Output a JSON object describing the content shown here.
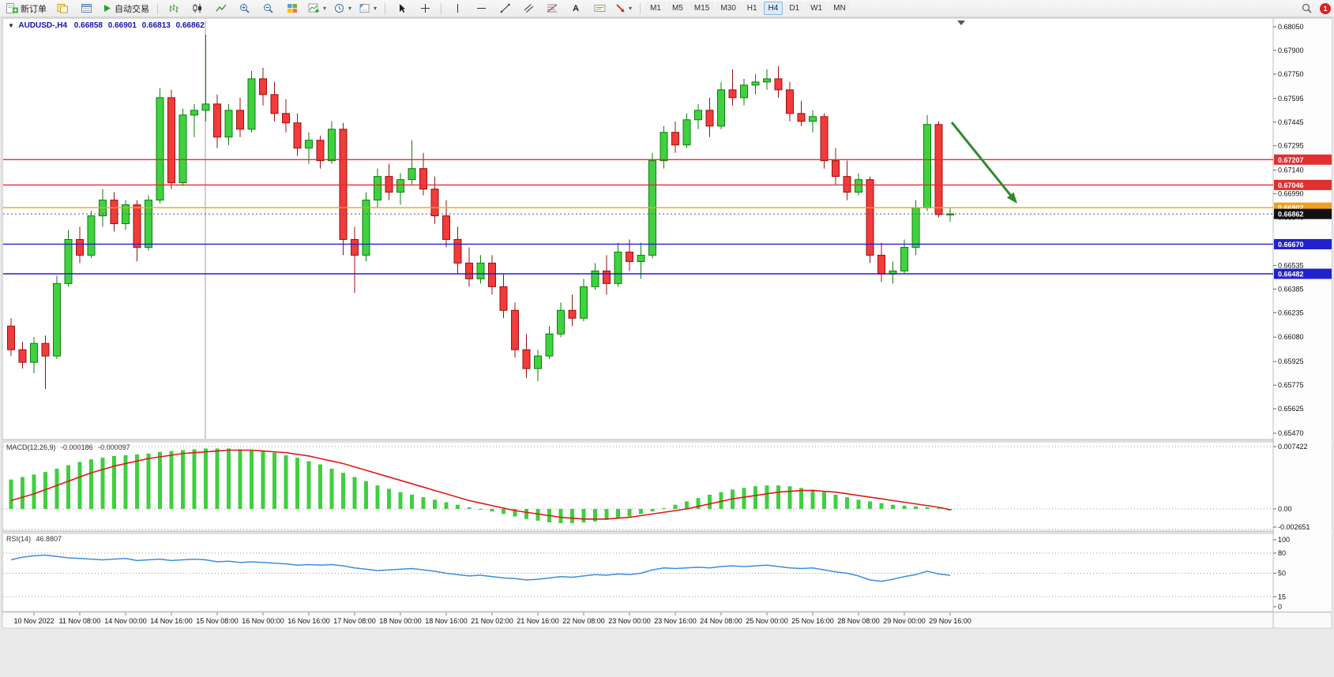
{
  "toolbar": {
    "new_order_label": "新订单",
    "auto_trading_label": "自动交易",
    "timeframes": [
      "M1",
      "M5",
      "M15",
      "M30",
      "H1",
      "H4",
      "D1",
      "W1",
      "MN"
    ],
    "active_timeframe": "H4",
    "notification_count": "1"
  },
  "chart_header": {
    "symbol_period": "AUDUSD-,H4",
    "open": "0.66858",
    "high": "0.66901",
    "low": "0.66813",
    "close": "0.66862"
  },
  "chart_data": {
    "type": "candlestick",
    "symbol": "AUDUSD",
    "period": "H4",
    "price_axis_labels": [
      "0.68050",
      "0.67900",
      "0.67750",
      "0.67595",
      "0.67445",
      "0.67295",
      "0.67140",
      "0.66990",
      "0.66840",
      "0.66685",
      "0.66535",
      "0.66385",
      "0.66235",
      "0.66080",
      "0.65925",
      "0.65775",
      "0.65625",
      "0.65470"
    ],
    "time_labels": [
      "10 Nov 2022",
      "11 Nov 08:00",
      "14 Nov 00:00",
      "14 Nov 16:00",
      "15 Nov 08:00",
      "16 Nov 00:00",
      "16 Nov 16:00",
      "17 Nov 08:00",
      "18 Nov 00:00",
      "18 Nov 16:00",
      "21 Nov 02:00",
      "21 Nov 16:00",
      "22 Nov 08:00",
      "23 Nov 00:00",
      "23 Nov 16:00",
      "24 Nov 08:00",
      "25 Nov 00:00",
      "25 Nov 16:00",
      "28 Nov 08:00",
      "29 Nov 00:00",
      "29 Nov 16:00"
    ],
    "label_start_index": 2,
    "label_step": 4,
    "colors": {
      "up": "#3fd23f",
      "up_border": "#0f7d0f",
      "down": "#f23b3b",
      "down_border": "#991111",
      "background": "#ffffff"
    },
    "candles": [
      [
        0.6615,
        0.662,
        0.6596,
        0.66
      ],
      [
        0.66,
        0.6605,
        0.6588,
        0.6592
      ],
      [
        0.6592,
        0.6608,
        0.6585,
        0.6604
      ],
      [
        0.6604,
        0.6609,
        0.6575,
        0.6596
      ],
      [
        0.6596,
        0.6647,
        0.6594,
        0.6642
      ],
      [
        0.6642,
        0.6676,
        0.664,
        0.667
      ],
      [
        0.667,
        0.6678,
        0.6655,
        0.666
      ],
      [
        0.666,
        0.6688,
        0.6658,
        0.6685
      ],
      [
        0.6685,
        0.6702,
        0.6678,
        0.6695
      ],
      [
        0.6695,
        0.67,
        0.6675,
        0.668
      ],
      [
        0.668,
        0.6695,
        0.6676,
        0.6692
      ],
      [
        0.6692,
        0.6695,
        0.6656,
        0.6665
      ],
      [
        0.6665,
        0.6698,
        0.6663,
        0.6695
      ],
      [
        0.6695,
        0.6766,
        0.6693,
        0.676
      ],
      [
        0.676,
        0.6765,
        0.6702,
        0.6706
      ],
      [
        0.6706,
        0.6753,
        0.6704,
        0.6749
      ],
      [
        0.6749,
        0.6756,
        0.6735,
        0.6752
      ],
      [
        0.6752,
        0.68,
        0.6745,
        0.6756
      ],
      [
        0.6756,
        0.6762,
        0.6728,
        0.6735
      ],
      [
        0.6735,
        0.6756,
        0.673,
        0.6752
      ],
      [
        0.6752,
        0.676,
        0.6735,
        0.674
      ],
      [
        0.674,
        0.6777,
        0.6738,
        0.6772
      ],
      [
        0.6772,
        0.6779,
        0.6755,
        0.6762
      ],
      [
        0.6762,
        0.677,
        0.6745,
        0.675
      ],
      [
        0.675,
        0.6759,
        0.6738,
        0.6744
      ],
      [
        0.6744,
        0.675,
        0.6723,
        0.6728
      ],
      [
        0.6728,
        0.6738,
        0.6718,
        0.6733
      ],
      [
        0.6733,
        0.6736,
        0.6715,
        0.672
      ],
      [
        0.672,
        0.6745,
        0.6718,
        0.674
      ],
      [
        0.674,
        0.6744,
        0.666,
        0.667
      ],
      [
        0.667,
        0.6678,
        0.6636,
        0.666
      ],
      [
        0.666,
        0.67,
        0.6656,
        0.6695
      ],
      [
        0.6695,
        0.6715,
        0.669,
        0.671
      ],
      [
        0.671,
        0.6718,
        0.6695,
        0.67
      ],
      [
        0.67,
        0.6712,
        0.6692,
        0.6708
      ],
      [
        0.6708,
        0.6733,
        0.6705,
        0.6715
      ],
      [
        0.6715,
        0.6725,
        0.6698,
        0.6702
      ],
      [
        0.6702,
        0.671,
        0.668,
        0.6685
      ],
      [
        0.6685,
        0.6695,
        0.6665,
        0.667
      ],
      [
        0.667,
        0.6678,
        0.6648,
        0.6655
      ],
      [
        0.6655,
        0.6665,
        0.664,
        0.6645
      ],
      [
        0.6645,
        0.666,
        0.6642,
        0.6655
      ],
      [
        0.6655,
        0.666,
        0.6635,
        0.664
      ],
      [
        0.664,
        0.6648,
        0.662,
        0.6625
      ],
      [
        0.6625,
        0.663,
        0.6595,
        0.66
      ],
      [
        0.66,
        0.661,
        0.6582,
        0.6588
      ],
      [
        0.6588,
        0.66,
        0.658,
        0.6596
      ],
      [
        0.6596,
        0.6615,
        0.6594,
        0.661
      ],
      [
        0.661,
        0.663,
        0.6608,
        0.6625
      ],
      [
        0.6625,
        0.6635,
        0.6615,
        0.662
      ],
      [
        0.662,
        0.6645,
        0.6618,
        0.664
      ],
      [
        0.664,
        0.6655,
        0.6638,
        0.665
      ],
      [
        0.665,
        0.666,
        0.6635,
        0.6642
      ],
      [
        0.6642,
        0.6668,
        0.664,
        0.6662
      ],
      [
        0.6662,
        0.667,
        0.665,
        0.6656
      ],
      [
        0.6656,
        0.6668,
        0.6645,
        0.666
      ],
      [
        0.666,
        0.6725,
        0.6658,
        0.672
      ],
      [
        0.672,
        0.6742,
        0.6715,
        0.6738
      ],
      [
        0.6738,
        0.6745,
        0.6725,
        0.673
      ],
      [
        0.673,
        0.675,
        0.6728,
        0.6746
      ],
      [
        0.6746,
        0.6756,
        0.674,
        0.6752
      ],
      [
        0.6752,
        0.676,
        0.6735,
        0.6742
      ],
      [
        0.6742,
        0.677,
        0.674,
        0.6765
      ],
      [
        0.6765,
        0.6778,
        0.6755,
        0.676
      ],
      [
        0.676,
        0.6772,
        0.6755,
        0.6768
      ],
      [
        0.6768,
        0.6775,
        0.6762,
        0.677
      ],
      [
        0.677,
        0.6778,
        0.6765,
        0.6772
      ],
      [
        0.6772,
        0.678,
        0.676,
        0.6765
      ],
      [
        0.6765,
        0.677,
        0.6745,
        0.675
      ],
      [
        0.675,
        0.6758,
        0.6742,
        0.6745
      ],
      [
        0.6745,
        0.6752,
        0.6738,
        0.6748
      ],
      [
        0.6748,
        0.675,
        0.6715,
        0.672
      ],
      [
        0.672,
        0.6728,
        0.6705,
        0.671
      ],
      [
        0.671,
        0.672,
        0.6695,
        0.67
      ],
      [
        0.67,
        0.6712,
        0.6698,
        0.6708
      ],
      [
        0.6708,
        0.671,
        0.6655,
        0.666
      ],
      [
        0.666,
        0.6668,
        0.6643,
        0.6648
      ],
      [
        0.6648,
        0.6656,
        0.6642,
        0.665
      ],
      [
        0.665,
        0.667,
        0.6648,
        0.6665
      ],
      [
        0.6665,
        0.6695,
        0.666,
        0.669
      ],
      [
        0.669,
        0.6749,
        0.6688,
        0.6743
      ],
      [
        0.6743,
        0.6745,
        0.6684,
        0.66858
      ],
      [
        0.66858,
        0.66901,
        0.66813,
        0.66862
      ]
    ],
    "hlines": [
      {
        "price": 0.67207,
        "label": "0.67207",
        "color": "#e03030",
        "type": "resistance"
      },
      {
        "price": 0.67046,
        "label": "0.67046",
        "color": "#e03030",
        "type": "resistance"
      },
      {
        "price": 0.66902,
        "label": "0.66902",
        "color": "#f0a020",
        "type": "pivot"
      },
      {
        "price": 0.6667,
        "label": "0.66670",
        "color": "#2222cc",
        "type": "support"
      },
      {
        "price": 0.66482,
        "label": "0.66482",
        "color": "#2222cc",
        "type": "support"
      }
    ],
    "current_price": {
      "value": 0.66862,
      "label": "0.66862",
      "badge_color": "#111111"
    },
    "arrow_annotation": {
      "color": "#2e8b2e",
      "direction": "down-right"
    },
    "macd": {
      "label": "MACD(12,26,9)",
      "value_main": "-0.000186",
      "value_signal": "-0.000097",
      "axis_labels": [
        "0.007422",
        "0.00",
        "-0.002651"
      ],
      "axis_max": 0.007422,
      "axis_min": -0.002651,
      "histogram_color": "#3fcf3f",
      "signal_color": "#e01818",
      "histogram": [
        0.0035,
        0.0038,
        0.0041,
        0.0044,
        0.0048,
        0.0052,
        0.0056,
        0.0059,
        0.0061,
        0.0063,
        0.0064,
        0.0065,
        0.0066,
        0.0068,
        0.0069,
        0.007,
        0.0071,
        0.0072,
        0.0072,
        0.0072,
        0.0071,
        0.007,
        0.0069,
        0.0067,
        0.0064,
        0.0061,
        0.0057,
        0.0053,
        0.0048,
        0.0043,
        0.0038,
        0.0033,
        0.0028,
        0.0024,
        0.002,
        0.0017,
        0.0014,
        0.0011,
        0.0008,
        0.0005,
        0.0002,
        0.0,
        -0.0003,
        -0.0006,
        -0.0009,
        -0.0012,
        -0.0014,
        -0.0016,
        -0.0017,
        -0.0017,
        -0.0016,
        -0.0015,
        -0.0013,
        -0.0011,
        -0.0009,
        -0.0006,
        -0.0003,
        0.0001,
        0.0005,
        0.0009,
        0.0013,
        0.0017,
        0.002,
        0.0023,
        0.0025,
        0.0027,
        0.0028,
        0.0028,
        0.0027,
        0.0025,
        0.0023,
        0.002,
        0.0017,
        0.0014,
        0.0011,
        0.0009,
        0.0007,
        0.0005,
        0.0004,
        0.0003,
        0.0002,
        0.0001,
        -0.000186
      ],
      "signal": [
        0.001,
        0.0014,
        0.0018,
        0.0023,
        0.0028,
        0.0033,
        0.0038,
        0.0043,
        0.0047,
        0.0051,
        0.0054,
        0.0057,
        0.006,
        0.0062,
        0.0064,
        0.0066,
        0.0067,
        0.0068,
        0.0069,
        0.007,
        0.007,
        0.007,
        0.0069,
        0.0068,
        0.0067,
        0.0065,
        0.0063,
        0.006,
        0.0057,
        0.0054,
        0.005,
        0.0046,
        0.0042,
        0.0038,
        0.0034,
        0.003,
        0.0026,
        0.0022,
        0.0018,
        0.0014,
        0.001,
        0.0007,
        0.0004,
        0.0001,
        -0.0002,
        -0.0004,
        -0.0006,
        -0.0008,
        -0.001,
        -0.0011,
        -0.0012,
        -0.0012,
        -0.0012,
        -0.0011,
        -0.001,
        -0.0008,
        -0.0006,
        -0.0004,
        -0.0002,
        0.0,
        0.0003,
        0.0006,
        0.0009,
        0.0012,
        0.0014,
        0.0016,
        0.0018,
        0.002,
        0.0021,
        0.0022,
        0.0022,
        0.0021,
        0.002,
        0.0018,
        0.0016,
        0.0014,
        0.0012,
        0.001,
        0.0008,
        0.0006,
        0.0004,
        0.0002,
        -9.7e-05
      ]
    },
    "rsi": {
      "label": "RSI(14)",
      "value": "46.8807",
      "axis_labels": [
        "100",
        "80",
        "50",
        "15",
        "0"
      ],
      "levels": [
        80,
        50,
        15
      ],
      "line_color": "#3b8ede",
      "values": [
        70,
        74,
        76,
        77,
        75,
        73,
        72,
        71,
        70,
        71,
        72,
        69,
        70,
        71,
        69,
        70,
        71,
        70,
        67,
        68,
        66,
        67,
        66,
        65,
        64,
        62,
        63,
        62,
        63,
        61,
        58,
        56,
        54,
        55,
        56,
        57,
        55,
        53,
        50,
        48,
        46,
        47,
        45,
        43,
        42,
        40,
        41,
        43,
        45,
        44,
        46,
        48,
        47,
        49,
        48,
        50,
        55,
        58,
        57,
        58,
        59,
        58,
        60,
        61,
        60,
        61,
        62,
        60,
        58,
        57,
        58,
        55,
        52,
        50,
        46,
        40,
        38,
        41,
        45,
        48,
        53,
        49,
        46.88
      ]
    }
  }
}
